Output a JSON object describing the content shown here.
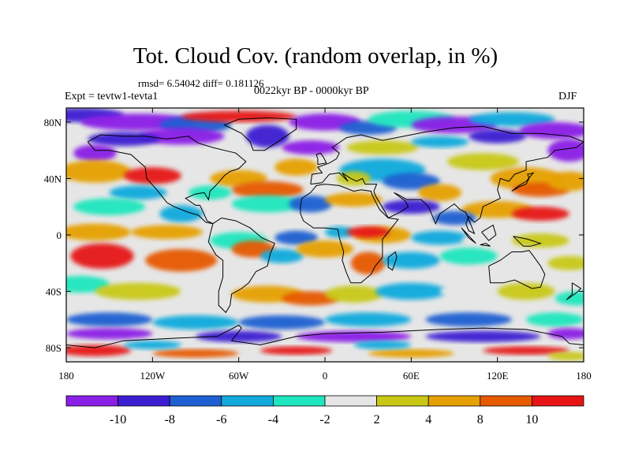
{
  "title": "Tot. Cloud Cov. (random overlap, in %)",
  "stats_line": "rmsd= 6.54042 diff= 0.181126",
  "period": "0022kyr BP - 0000kyr BP",
  "experiment": "Expt = tevtw1-tevta1",
  "season": "DJF",
  "map": {
    "projection": "cylindrical equidistant",
    "lon_range": [
      -180,
      180
    ],
    "lat_range": [
      -90,
      90
    ],
    "x_ticks": [
      {
        "lon": -180,
        "label": "180"
      },
      {
        "lon": -120,
        "label": "120W"
      },
      {
        "lon": -60,
        "label": "60W"
      },
      {
        "lon": 0,
        "label": "0"
      },
      {
        "lon": 60,
        "label": "60E"
      },
      {
        "lon": 120,
        "label": "120E"
      },
      {
        "lon": 180,
        "label": "180"
      }
    ],
    "y_ticks": [
      {
        "lat": 80,
        "label": "80N"
      },
      {
        "lat": 40,
        "label": "40N"
      },
      {
        "lat": 0,
        "label": "0"
      },
      {
        "lat": -40,
        "label": "40S"
      },
      {
        "lat": -80,
        "label": "80S"
      }
    ]
  },
  "colorbar": {
    "colors": [
      "#8a1fe6",
      "#3c1ed2",
      "#1e5fd2",
      "#12aadc",
      "#1ee6be",
      "#e6e6e6",
      "#c8c814",
      "#e6a000",
      "#e65a00",
      "#e61414"
    ],
    "labels": [
      "-10",
      "-8",
      "-6",
      "-4",
      "-2",
      "2",
      "4",
      "8",
      "10"
    ]
  },
  "field_colors": {
    "ocean": "#e6e6e6",
    "land": "#e6e6e6",
    "coast": "#000000"
  }
}
